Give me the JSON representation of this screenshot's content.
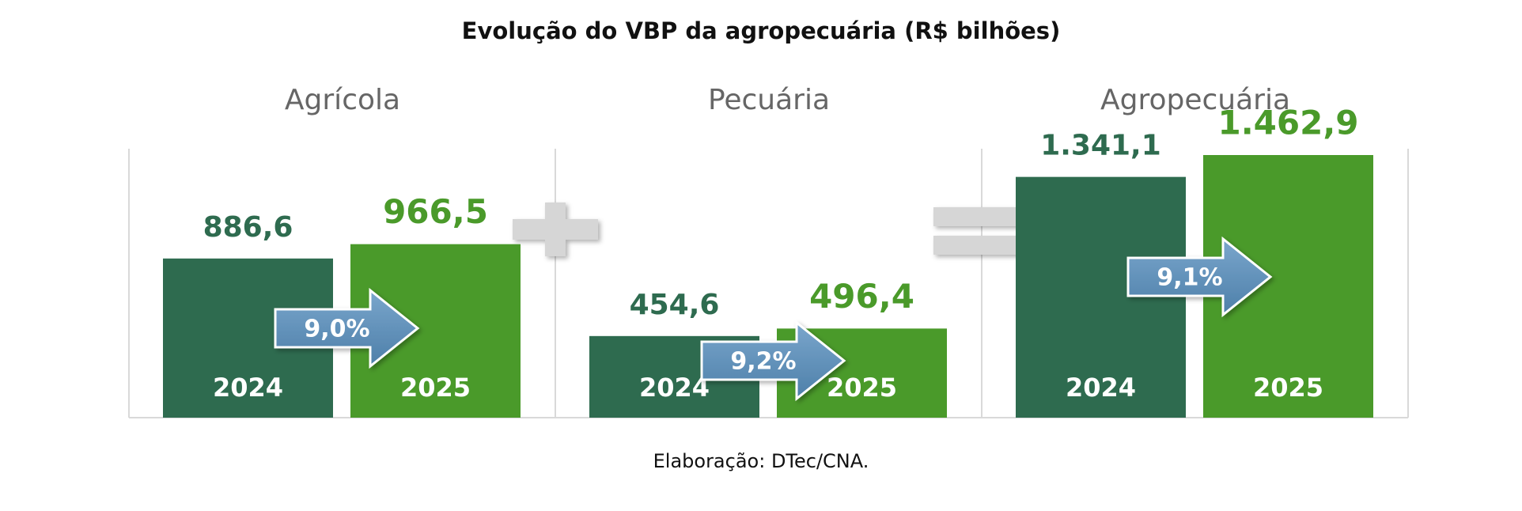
{
  "title": "Evolução do VBP da agropecuária (R$ bilhões)",
  "source": "Elaboração: DTec/CNA.",
  "chart_data": [
    {
      "type": "bar",
      "title": "Agrícola",
      "categories": [
        "2024",
        "2025"
      ],
      "values": [
        886.6,
        966.5
      ],
      "value_labels": [
        "886,6",
        "966,5"
      ],
      "colors": [
        "#2e6b4f",
        "#4a9a2a"
      ],
      "annotation": "9,0%"
    },
    {
      "type": "bar",
      "title": "Pecuária",
      "categories": [
        "2024",
        "2025"
      ],
      "values": [
        454.6,
        496.4
      ],
      "value_labels": [
        "454,6",
        "496,4"
      ],
      "colors": [
        "#2e6b4f",
        "#4a9a2a"
      ],
      "annotation": "9,2%"
    },
    {
      "type": "bar",
      "title": "Agropecuária",
      "categories": [
        "2024",
        "2025"
      ],
      "values": [
        1341.1,
        1462.9
      ],
      "value_labels": [
        "1.341,1",
        "1.462,9"
      ],
      "colors": [
        "#2e6b4f",
        "#4a9a2a"
      ],
      "annotation": "9,1%"
    }
  ]
}
